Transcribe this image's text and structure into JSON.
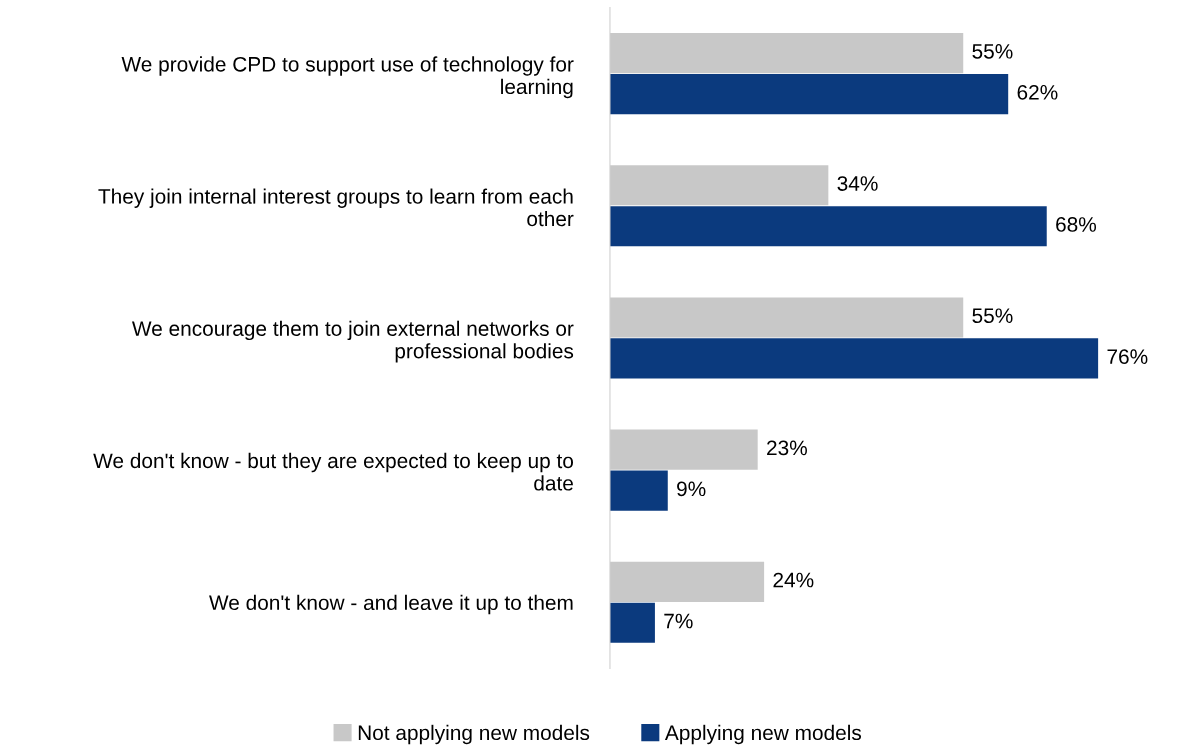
{
  "chart_data": {
    "type": "bar",
    "orientation": "horizontal",
    "categories": [
      "We provide CPD to support use of technology for\nlearning",
      "They join internal interest groups to learn from each\nother",
      "We encourage them to join external networks or\nprofessional bodies",
      "We don't know - but they are expected to keep up to\ndate",
      "We don't know - and leave it up to them"
    ],
    "series": [
      {
        "name": "Not applying new models",
        "color": "#c8c8c8",
        "values": [
          55,
          34,
          55,
          23,
          24
        ],
        "value_labels": [
          "55%",
          "34%",
          "55%",
          "23%",
          "24%"
        ]
      },
      {
        "name": "Applying new models",
        "color": "#0b3a7e",
        "values": [
          62,
          68,
          76,
          9,
          7
        ],
        "value_labels": [
          "62%",
          "68%",
          "76%",
          "9%",
          "7%"
        ]
      }
    ],
    "legend": "bottom",
    "grid": false
  }
}
